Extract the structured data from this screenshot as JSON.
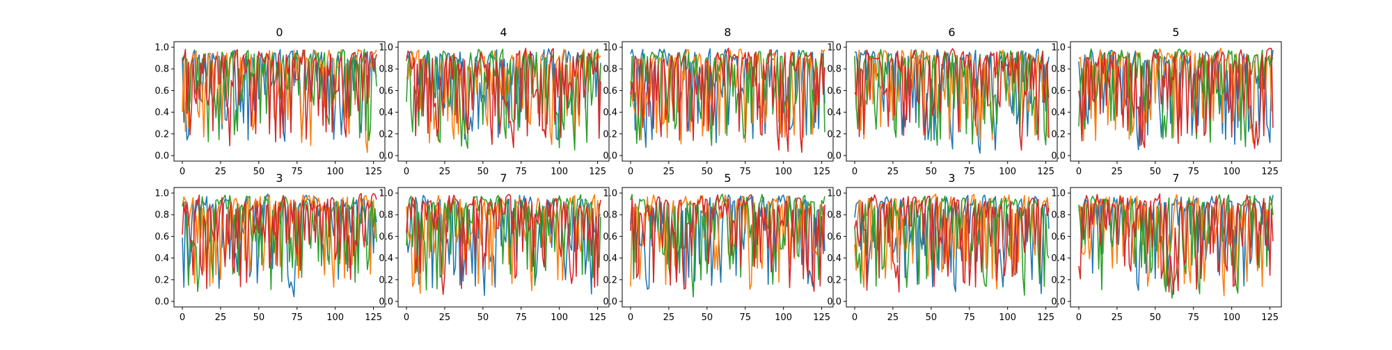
{
  "colors": {
    "series": [
      "#1f77b4",
      "#ff7f0e",
      "#2ca02c",
      "#d62728"
    ],
    "axes": "#000000",
    "background": "#ffffff"
  },
  "chart_data": [
    {
      "type": "line",
      "title": "0",
      "xlim": [
        0,
        127
      ],
      "ylim": [
        0.0,
        1.0
      ],
      "xticks": [
        "0",
        "25",
        "50",
        "75",
        "100",
        "125"
      ],
      "yticks": [
        "0.0",
        "0.2",
        "0.4",
        "0.6",
        "0.8",
        "1.0"
      ],
      "grid": false,
      "legend": "none",
      "series_count": 4,
      "points_per_series": 128,
      "seed": 101
    },
    {
      "type": "line",
      "title": "4",
      "xlim": [
        0,
        127
      ],
      "ylim": [
        0.0,
        1.0
      ],
      "xticks": [
        "0",
        "25",
        "50",
        "75",
        "100",
        "125"
      ],
      "yticks": [
        "0.0",
        "0.2",
        "0.4",
        "0.6",
        "0.8",
        "1.0"
      ],
      "grid": false,
      "legend": "none",
      "series_count": 4,
      "points_per_series": 128,
      "seed": 202
    },
    {
      "type": "line",
      "title": "8",
      "xlim": [
        0,
        127
      ],
      "ylim": [
        0.0,
        1.0
      ],
      "xticks": [
        "0",
        "25",
        "50",
        "75",
        "100",
        "125"
      ],
      "yticks": [
        "0.0",
        "0.2",
        "0.4",
        "0.6",
        "0.8",
        "1.0"
      ],
      "grid": false,
      "legend": "none",
      "series_count": 4,
      "points_per_series": 128,
      "seed": 303
    },
    {
      "type": "line",
      "title": "6",
      "xlim": [
        0,
        127
      ],
      "ylim": [
        0.0,
        1.0
      ],
      "xticks": [
        "0",
        "25",
        "50",
        "75",
        "100",
        "125"
      ],
      "yticks": [
        "0.0",
        "0.2",
        "0.4",
        "0.6",
        "0.8",
        "1.0"
      ],
      "grid": false,
      "legend": "none",
      "series_count": 4,
      "points_per_series": 128,
      "seed": 404
    },
    {
      "type": "line",
      "title": "5",
      "xlim": [
        0,
        127
      ],
      "ylim": [
        0.0,
        1.0
      ],
      "xticks": [
        "0",
        "25",
        "50",
        "75",
        "100",
        "125"
      ],
      "yticks": [
        "0.0",
        "0.2",
        "0.4",
        "0.6",
        "0.8",
        "1.0"
      ],
      "grid": false,
      "legend": "none",
      "series_count": 4,
      "points_per_series": 128,
      "seed": 505
    },
    {
      "type": "line",
      "title": "3",
      "xlim": [
        0,
        127
      ],
      "ylim": [
        0.0,
        1.0
      ],
      "xticks": [
        "0",
        "25",
        "50",
        "75",
        "100",
        "125"
      ],
      "yticks": [
        "0.0",
        "0.2",
        "0.4",
        "0.6",
        "0.8",
        "1.0"
      ],
      "grid": false,
      "legend": "none",
      "series_count": 4,
      "points_per_series": 128,
      "seed": 606
    },
    {
      "type": "line",
      "title": "7",
      "xlim": [
        0,
        127
      ],
      "ylim": [
        0.0,
        1.0
      ],
      "xticks": [
        "0",
        "25",
        "50",
        "75",
        "100",
        "125"
      ],
      "yticks": [
        "0.0",
        "0.2",
        "0.4",
        "0.6",
        "0.8",
        "1.0"
      ],
      "grid": false,
      "legend": "none",
      "series_count": 4,
      "points_per_series": 128,
      "seed": 707
    },
    {
      "type": "line",
      "title": "5",
      "xlim": [
        0,
        127
      ],
      "ylim": [
        0.0,
        1.0
      ],
      "xticks": [
        "0",
        "25",
        "50",
        "75",
        "100",
        "125"
      ],
      "yticks": [
        "0.0",
        "0.2",
        "0.4",
        "0.6",
        "0.8",
        "1.0"
      ],
      "grid": false,
      "legend": "none",
      "series_count": 4,
      "points_per_series": 128,
      "seed": 808
    },
    {
      "type": "line",
      "title": "3",
      "xlim": [
        0,
        127
      ],
      "ylim": [
        0.0,
        1.0
      ],
      "xticks": [
        "0",
        "25",
        "50",
        "75",
        "100",
        "125"
      ],
      "yticks": [
        "0.0",
        "0.2",
        "0.4",
        "0.6",
        "0.8",
        "1.0"
      ],
      "grid": false,
      "legend": "none",
      "series_count": 4,
      "points_per_series": 128,
      "seed": 909
    },
    {
      "type": "line",
      "title": "7",
      "xlim": [
        0,
        127
      ],
      "ylim": [
        0.0,
        1.0
      ],
      "xticks": [
        "0",
        "25",
        "50",
        "75",
        "100",
        "125"
      ],
      "yticks": [
        "0.0",
        "0.2",
        "0.4",
        "0.6",
        "0.8",
        "1.0"
      ],
      "grid": false,
      "legend": "none",
      "series_count": 4,
      "points_per_series": 128,
      "seed": 1010
    }
  ]
}
